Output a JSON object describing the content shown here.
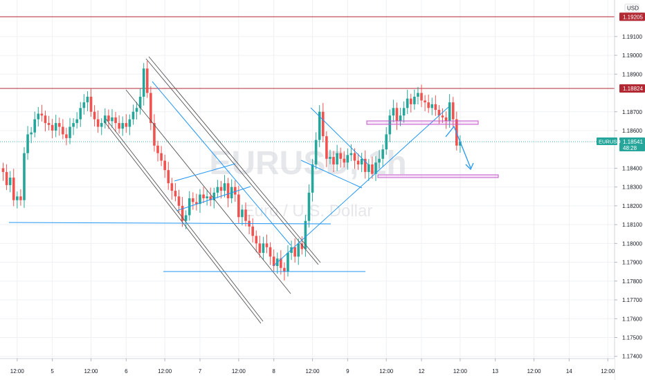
{
  "currency": "USD",
  "colors": {
    "up": "#26a69a",
    "down": "#ef5350",
    "resistance": "#b22833",
    "price_line": "#26a69a",
    "trendline": "#2196f3",
    "zone": "#c155c9",
    "channel": "#555555"
  },
  "chart_data": {
    "type": "candlestick",
    "symbol": "EURUSD",
    "timeframe": "1h",
    "watermark_symbol": "EURUSD, 1h",
    "watermark_name": "Euro / U.S. Dollar",
    "ylim": [
      1.17388,
      1.1925
    ],
    "y_ticks": [
      "1.19100",
      "1.19000",
      "1.18900",
      "1.18700",
      "1.18600",
      "1.18400",
      "1.18300",
      "1.18200",
      "1.18100",
      "1.18000",
      "1.17900",
      "1.17800",
      "1.17700",
      "1.17600",
      "1.17500",
      "1.17400"
    ],
    "x_axis": [
      {
        "label": "12:00",
        "bar": 4
      },
      {
        "label": "5",
        "bar": 14
      },
      {
        "label": "12:00",
        "bar": 25
      },
      {
        "label": "6",
        "bar": 35
      },
      {
        "label": "12:00",
        "bar": 46
      },
      {
        "label": "7",
        "bar": 56
      },
      {
        "label": "12:00",
        "bar": 67
      },
      {
        "label": "8",
        "bar": 77
      },
      {
        "label": "12:00",
        "bar": 88
      },
      {
        "label": "9",
        "bar": 98
      },
      {
        "label": "12:00",
        "bar": 109
      },
      {
        "label": "12",
        "bar": 119
      },
      {
        "label": "12:00",
        "bar": 130
      },
      {
        "label": "13",
        "bar": 140
      },
      {
        "label": "12:00",
        "bar": 151
      },
      {
        "label": "14",
        "bar": 161
      },
      {
        "label": "12:00",
        "bar": 172
      }
    ],
    "resistance_levels": [
      {
        "price": 1.19205,
        "label": "1.19205"
      },
      {
        "price": 1.18824,
        "label": "1.18824"
      }
    ],
    "last_price": {
      "price": 1.18541,
      "label": "1.18541",
      "countdown": "48:28"
    },
    "closes": [
      1.1838,
      1.1831,
      1.1835,
      1.1823,
      1.1825,
      1.1823,
      1.1848,
      1.1858,
      1.1859,
      1.1866,
      1.1869,
      1.1868,
      1.1864,
      1.1863,
      1.186,
      1.1864,
      1.1862,
      1.1858,
      1.1856,
      1.1862,
      1.1864,
      1.1866,
      1.1872,
      1.1875,
      1.1878,
      1.187,
      1.1866,
      1.1862,
      1.1864,
      1.1868,
      1.1865,
      1.1867,
      1.1864,
      1.1861,
      1.1864,
      1.1862,
      1.1866,
      1.187,
      1.1872,
      1.1878,
      1.1893,
      1.188,
      1.1864,
      1.1852,
      1.1848,
      1.1844,
      1.1839,
      1.1832,
      1.1828,
      1.1825,
      1.182,
      1.1812,
      1.1815,
      1.1824,
      1.1822,
      1.1821,
      1.1826,
      1.1824,
      1.1825,
      1.1823,
      1.1827,
      1.183,
      1.1828,
      1.1832,
      1.1824,
      1.183,
      1.1826,
      1.1814,
      1.1818,
      1.1812,
      1.1809,
      1.1804,
      1.18,
      1.1795,
      1.18,
      1.1798,
      1.1793,
      1.1788,
      1.1792,
      1.1787,
      1.1785,
      1.1795,
      1.1798,
      1.1793,
      1.18,
      1.1797,
      1.1812,
      1.1827,
      1.1842,
      1.1855,
      1.187,
      1.1857,
      1.1845,
      1.1846,
      1.1842,
      1.1848,
      1.1845,
      1.1843,
      1.1847,
      1.1848,
      1.1844,
      1.1842,
      1.1845,
      1.1838,
      1.1842,
      1.1837,
      1.1843,
      1.1845,
      1.185,
      1.1858,
      1.1868,
      1.1872,
      1.1865,
      1.1868,
      1.1872,
      1.1877,
      1.1874,
      1.1878,
      1.188,
      1.1876,
      1.1875,
      1.1872,
      1.1874,
      1.1871,
      1.1868,
      1.1867,
      1.1865,
      1.1875,
      1.1866,
      1.1852,
      1.1854
    ]
  }
}
